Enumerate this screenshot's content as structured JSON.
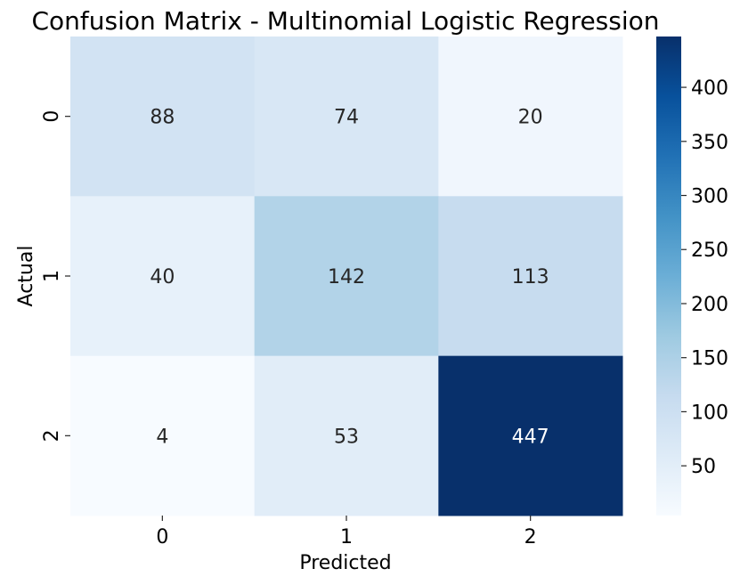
{
  "chart_data": {
    "type": "heatmap",
    "title": "Confusion Matrix - Multinomial Logistic Regression",
    "xlabel": "Predicted",
    "ylabel": "Actual",
    "x_categories": [
      "0",
      "1",
      "2"
    ],
    "y_categories": [
      "0",
      "1",
      "2"
    ],
    "values": [
      [
        88,
        74,
        20
      ],
      [
        40,
        142,
        113
      ],
      [
        4,
        53,
        447
      ]
    ],
    "colormap": "Blues",
    "color_range": [
      4,
      447
    ],
    "colorbar_ticks": [
      50,
      100,
      150,
      200,
      250,
      300,
      350,
      400
    ],
    "colors": {
      "low": "#f7fbff",
      "high": "#08306b",
      "text_on_light": "#262626",
      "text_on_dark": "#ffffff"
    }
  }
}
